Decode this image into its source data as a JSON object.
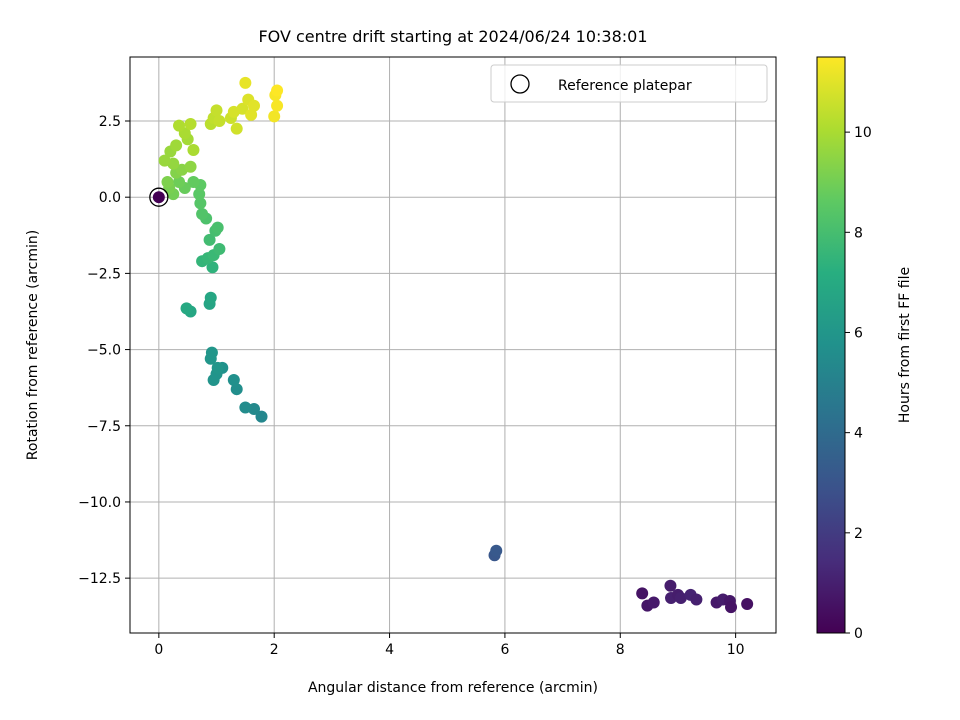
{
  "chart_data": {
    "type": "scatter",
    "title": "FOV centre drift starting at 2024/06/24 10:38:01",
    "xlabel": "Angular distance from reference (arcmin)",
    "ylabel": "Rotation from reference (arcmin)",
    "xlim": [
      -0.5,
      10.7
    ],
    "ylim": [
      -14.3,
      4.6
    ],
    "xticks": [
      0,
      2,
      4,
      6,
      8,
      10
    ],
    "xtick_labels": [
      "0",
      "2",
      "4",
      "6",
      "8",
      "10"
    ],
    "yticks": [
      2.5,
      0.0,
      -2.5,
      -5.0,
      -7.5,
      -10.0,
      -12.5
    ],
    "ytick_labels": [
      "2.5",
      "0.0",
      "−2.5",
      "−5.0",
      "−7.5",
      "−10.0",
      "−12.5"
    ],
    "grid": true,
    "legend": {
      "position": "top-right",
      "entries": [
        "Reference platepar"
      ]
    },
    "colorbar": {
      "label": "Hours from first FF file",
      "range": [
        0,
        11.5
      ],
      "colormap": "viridis",
      "ticks": [
        0,
        2,
        4,
        6,
        8,
        10
      ],
      "tick_labels": [
        "0",
        "2",
        "4",
        "6",
        "8",
        "10"
      ]
    },
    "reference_point": {
      "x": 0,
      "y": 0,
      "hours": 0
    },
    "points": [
      {
        "x": 8.38,
        "y": -13.0,
        "h": 0.6
      },
      {
        "x": 8.47,
        "y": -13.4,
        "h": 0.7
      },
      {
        "x": 8.58,
        "y": -13.3,
        "h": 0.8
      },
      {
        "x": 8.87,
        "y": -12.75,
        "h": 0.9
      },
      {
        "x": 8.88,
        "y": -13.15,
        "h": 1.0
      },
      {
        "x": 9.0,
        "y": -13.05,
        "h": 0.9
      },
      {
        "x": 9.05,
        "y": -13.15,
        "h": 1.0
      },
      {
        "x": 9.22,
        "y": -13.05,
        "h": 1.1
      },
      {
        "x": 9.32,
        "y": -13.2,
        "h": 1.0
      },
      {
        "x": 9.67,
        "y": -13.3,
        "h": 0.8
      },
      {
        "x": 9.78,
        "y": -13.2,
        "h": 0.9
      },
      {
        "x": 9.9,
        "y": -13.25,
        "h": 0.7
      },
      {
        "x": 9.92,
        "y": -13.45,
        "h": 0.6
      },
      {
        "x": 10.2,
        "y": -13.35,
        "h": 0.5
      },
      {
        "x": 5.82,
        "y": -11.75,
        "h": 3.1
      },
      {
        "x": 5.85,
        "y": -11.6,
        "h": 3.2
      },
      {
        "x": 1.78,
        "y": -7.2,
        "h": 5.3
      },
      {
        "x": 1.65,
        "y": -6.95,
        "h": 5.4
      },
      {
        "x": 1.5,
        "y": -6.9,
        "h": 5.5
      },
      {
        "x": 1.35,
        "y": -6.3,
        "h": 5.6
      },
      {
        "x": 1.3,
        "y": -6.0,
        "h": 5.7
      },
      {
        "x": 1.1,
        "y": -5.6,
        "h": 5.8
      },
      {
        "x": 1.0,
        "y": -5.8,
        "h": 5.9
      },
      {
        "x": 0.95,
        "y": -6.0,
        "h": 5.9
      },
      {
        "x": 0.9,
        "y": -5.3,
        "h": 6.0
      },
      {
        "x": 0.92,
        "y": -5.1,
        "h": 6.0
      },
      {
        "x": 1.02,
        "y": -5.6,
        "h": 6.0
      },
      {
        "x": 0.88,
        "y": -3.5,
        "h": 6.7
      },
      {
        "x": 0.9,
        "y": -3.3,
        "h": 6.8
      },
      {
        "x": 0.55,
        "y": -3.75,
        "h": 6.8
      },
      {
        "x": 0.48,
        "y": -3.65,
        "h": 6.9
      },
      {
        "x": 0.93,
        "y": -2.3,
        "h": 7.4
      },
      {
        "x": 0.75,
        "y": -2.1,
        "h": 7.5
      },
      {
        "x": 0.85,
        "y": -2.0,
        "h": 7.6
      },
      {
        "x": 0.95,
        "y": -1.9,
        "h": 7.7
      },
      {
        "x": 1.05,
        "y": -1.7,
        "h": 7.8
      },
      {
        "x": 0.88,
        "y": -1.4,
        "h": 7.9
      },
      {
        "x": 0.98,
        "y": -1.1,
        "h": 8.0
      },
      {
        "x": 1.02,
        "y": -1.0,
        "h": 8.1
      },
      {
        "x": 0.82,
        "y": -0.7,
        "h": 8.2
      },
      {
        "x": 0.75,
        "y": -0.55,
        "h": 8.3
      },
      {
        "x": 0.72,
        "y": -0.2,
        "h": 8.4
      },
      {
        "x": 0.7,
        "y": 0.1,
        "h": 8.5
      },
      {
        "x": 0.72,
        "y": 0.4,
        "h": 8.6
      },
      {
        "x": 0.6,
        "y": 0.5,
        "h": 8.7
      },
      {
        "x": 0.45,
        "y": 0.3,
        "h": 8.8
      },
      {
        "x": 0.35,
        "y": 0.5,
        "h": 8.9
      },
      {
        "x": 0.25,
        "y": 0.1,
        "h": 9.0
      },
      {
        "x": 0.18,
        "y": 0.3,
        "h": 9.1
      },
      {
        "x": 0.15,
        "y": 0.5,
        "h": 9.2
      },
      {
        "x": 0.3,
        "y": 0.8,
        "h": 9.3
      },
      {
        "x": 0.4,
        "y": 0.9,
        "h": 9.4
      },
      {
        "x": 0.55,
        "y": 1.0,
        "h": 9.5
      },
      {
        "x": 0.25,
        "y": 1.1,
        "h": 9.6
      },
      {
        "x": 0.1,
        "y": 1.2,
        "h": 9.7
      },
      {
        "x": 0.2,
        "y": 1.5,
        "h": 9.7
      },
      {
        "x": 0.3,
        "y": 1.7,
        "h": 9.8
      },
      {
        "x": 0.5,
        "y": 1.9,
        "h": 9.9
      },
      {
        "x": 0.45,
        "y": 2.1,
        "h": 10.0
      },
      {
        "x": 0.35,
        "y": 2.35,
        "h": 10.1
      },
      {
        "x": 0.55,
        "y": 2.4,
        "h": 10.2
      },
      {
        "x": 0.6,
        "y": 1.55,
        "h": 10.0
      },
      {
        "x": 0.9,
        "y": 2.4,
        "h": 10.3
      },
      {
        "x": 0.95,
        "y": 2.6,
        "h": 10.4
      },
      {
        "x": 1.0,
        "y": 2.85,
        "h": 10.5
      },
      {
        "x": 1.05,
        "y": 2.5,
        "h": 10.5
      },
      {
        "x": 1.25,
        "y": 2.6,
        "h": 10.6
      },
      {
        "x": 1.35,
        "y": 2.25,
        "h": 10.7
      },
      {
        "x": 1.3,
        "y": 2.8,
        "h": 10.8
      },
      {
        "x": 1.45,
        "y": 2.9,
        "h": 10.8
      },
      {
        "x": 1.55,
        "y": 3.2,
        "h": 10.9
      },
      {
        "x": 1.6,
        "y": 2.7,
        "h": 11.0
      },
      {
        "x": 1.65,
        "y": 3.0,
        "h": 11.0
      },
      {
        "x": 1.5,
        "y": 3.75,
        "h": 11.1
      },
      {
        "x": 2.0,
        "y": 2.65,
        "h": 11.3
      },
      {
        "x": 2.05,
        "y": 3.0,
        "h": 11.4
      },
      {
        "x": 2.02,
        "y": 3.35,
        "h": 11.4
      },
      {
        "x": 2.05,
        "y": 3.5,
        "h": 11.5
      }
    ]
  }
}
